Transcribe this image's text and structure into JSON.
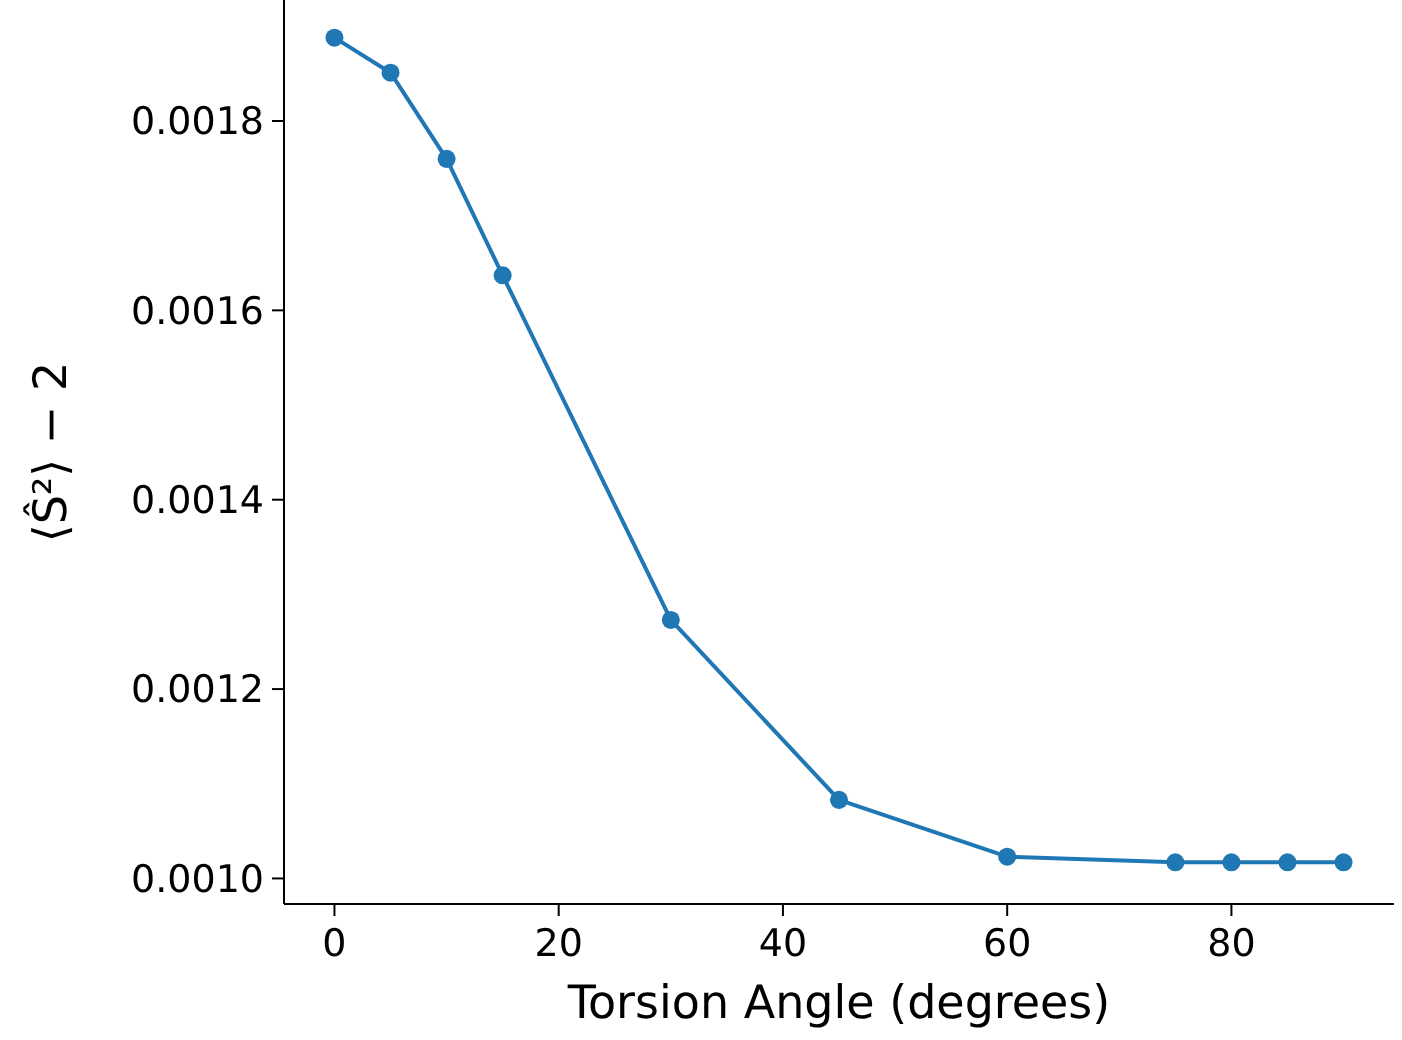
{
  "chart_data": {
    "type": "line",
    "xlabel": "Torsion Angle (degrees)",
    "ylabel": "⟨Ŝ²⟩ − 2",
    "x": [
      0,
      5,
      10,
      15,
      30,
      45,
      60,
      75,
      80,
      85,
      90
    ],
    "series": [
      {
        "color": "#1f77b4",
        "values": [
          0.001888,
          0.001851,
          0.00176,
          0.001637,
          0.001273,
          0.001083,
          0.001023,
          0.001017,
          0.001017,
          0.001017,
          0.001017
        ]
      }
    ],
    "xlim": [
      -4.5,
      94.5
    ],
    "ylim": [
      0.000973,
      0.001932
    ],
    "xticks": [
      0,
      20,
      40,
      60,
      80
    ],
    "yticks": [
      {
        "value": 0.001,
        "label": "0.0010"
      },
      0.0012,
      0.0014,
      0.0016,
      0.0018
    ],
    "marker": "circle",
    "line_style": "solid",
    "grid": false
  }
}
